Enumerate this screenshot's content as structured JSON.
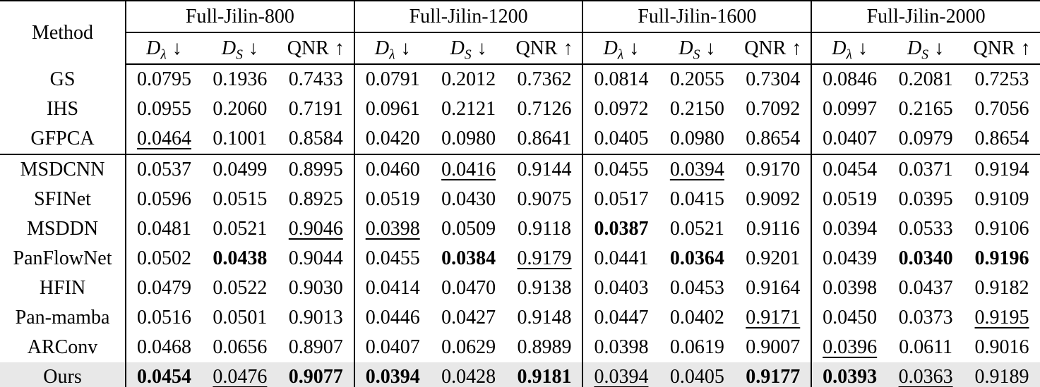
{
  "table": {
    "corner_label": "Method",
    "highlight_color": "#e8e8e8",
    "groups": [
      {
        "label": "Full-Jilin-800"
      },
      {
        "label": "Full-Jilin-1200"
      },
      {
        "label": "Full-Jilin-1600"
      },
      {
        "label": "Full-Jilin-2000"
      }
    ],
    "metric_labels": [
      {
        "base": "D",
        "sub": "λ",
        "arrow": "↓"
      },
      {
        "base": "D",
        "sub": "S",
        "arrow": "↓"
      },
      {
        "base": "QNR",
        "sub": "",
        "arrow": "↑"
      }
    ],
    "rows": [
      {
        "method": "GS",
        "section_start": false,
        "highlight": false,
        "values": [
          {
            "v": "0.0795",
            "style": "plain"
          },
          {
            "v": "0.1936",
            "style": "plain"
          },
          {
            "v": "0.7433",
            "style": "plain"
          },
          {
            "v": "0.0791",
            "style": "plain"
          },
          {
            "v": "0.2012",
            "style": "plain"
          },
          {
            "v": "0.7362",
            "style": "plain"
          },
          {
            "v": "0.0814",
            "style": "plain"
          },
          {
            "v": "0.2055",
            "style": "plain"
          },
          {
            "v": "0.7304",
            "style": "plain"
          },
          {
            "v": "0.0846",
            "style": "plain"
          },
          {
            "v": "0.2081",
            "style": "plain"
          },
          {
            "v": "0.7253",
            "style": "plain"
          }
        ]
      },
      {
        "method": "IHS",
        "section_start": false,
        "highlight": false,
        "values": [
          {
            "v": "0.0955",
            "style": "plain"
          },
          {
            "v": "0.2060",
            "style": "plain"
          },
          {
            "v": "0.7191",
            "style": "plain"
          },
          {
            "v": "0.0961",
            "style": "plain"
          },
          {
            "v": "0.2121",
            "style": "plain"
          },
          {
            "v": "0.7126",
            "style": "plain"
          },
          {
            "v": "0.0972",
            "style": "plain"
          },
          {
            "v": "0.2150",
            "style": "plain"
          },
          {
            "v": "0.7092",
            "style": "plain"
          },
          {
            "v": "0.0997",
            "style": "plain"
          },
          {
            "v": "0.2165",
            "style": "plain"
          },
          {
            "v": "0.7056",
            "style": "plain"
          }
        ]
      },
      {
        "method": "GFPCA",
        "section_start": false,
        "highlight": false,
        "values": [
          {
            "v": "0.0464",
            "style": "underline"
          },
          {
            "v": "0.1001",
            "style": "plain"
          },
          {
            "v": "0.8584",
            "style": "plain"
          },
          {
            "v": "0.0420",
            "style": "plain"
          },
          {
            "v": "0.0980",
            "style": "plain"
          },
          {
            "v": "0.8641",
            "style": "plain"
          },
          {
            "v": "0.0405",
            "style": "plain"
          },
          {
            "v": "0.0980",
            "style": "plain"
          },
          {
            "v": "0.8654",
            "style": "plain"
          },
          {
            "v": "0.0407",
            "style": "plain"
          },
          {
            "v": "0.0979",
            "style": "plain"
          },
          {
            "v": "0.8654",
            "style": "plain"
          }
        ]
      },
      {
        "method": "MSDCNN",
        "section_start": true,
        "highlight": false,
        "values": [
          {
            "v": "0.0537",
            "style": "plain"
          },
          {
            "v": "0.0499",
            "style": "plain"
          },
          {
            "v": "0.8995",
            "style": "plain"
          },
          {
            "v": "0.0460",
            "style": "plain"
          },
          {
            "v": "0.0416",
            "style": "underline"
          },
          {
            "v": "0.9144",
            "style": "plain"
          },
          {
            "v": "0.0455",
            "style": "plain"
          },
          {
            "v": "0.0394",
            "style": "underline"
          },
          {
            "v": "0.9170",
            "style": "plain"
          },
          {
            "v": "0.0454",
            "style": "plain"
          },
          {
            "v": "0.0371",
            "style": "plain"
          },
          {
            "v": "0.9194",
            "style": "plain"
          }
        ]
      },
      {
        "method": "SFINet",
        "section_start": false,
        "highlight": false,
        "values": [
          {
            "v": "0.0596",
            "style": "plain"
          },
          {
            "v": "0.0515",
            "style": "plain"
          },
          {
            "v": "0.8925",
            "style": "plain"
          },
          {
            "v": "0.0519",
            "style": "plain"
          },
          {
            "v": "0.0430",
            "style": "plain"
          },
          {
            "v": "0.9075",
            "style": "plain"
          },
          {
            "v": "0.0517",
            "style": "plain"
          },
          {
            "v": "0.0415",
            "style": "plain"
          },
          {
            "v": "0.9092",
            "style": "plain"
          },
          {
            "v": "0.0519",
            "style": "plain"
          },
          {
            "v": "0.0395",
            "style": "plain"
          },
          {
            "v": "0.9109",
            "style": "plain"
          }
        ]
      },
      {
        "method": "MSDDN",
        "section_start": false,
        "highlight": false,
        "values": [
          {
            "v": "0.0481",
            "style": "plain"
          },
          {
            "v": "0.0521",
            "style": "plain"
          },
          {
            "v": "0.9046",
            "style": "underline"
          },
          {
            "v": "0.0398",
            "style": "underline"
          },
          {
            "v": "0.0509",
            "style": "plain"
          },
          {
            "v": "0.9118",
            "style": "plain"
          },
          {
            "v": "0.0387",
            "style": "bold"
          },
          {
            "v": "0.0521",
            "style": "plain"
          },
          {
            "v": "0.9116",
            "style": "plain"
          },
          {
            "v": "0.0394",
            "style": "plain"
          },
          {
            "v": "0.0533",
            "style": "plain"
          },
          {
            "v": "0.9106",
            "style": "plain"
          }
        ]
      },
      {
        "method": "PanFlowNet",
        "section_start": false,
        "highlight": false,
        "values": [
          {
            "v": "0.0502",
            "style": "plain"
          },
          {
            "v": "0.0438",
            "style": "bold"
          },
          {
            "v": "0.9044",
            "style": "plain"
          },
          {
            "v": "0.0455",
            "style": "plain"
          },
          {
            "v": "0.0384",
            "style": "bold"
          },
          {
            "v": "0.9179",
            "style": "underline"
          },
          {
            "v": "0.0441",
            "style": "plain"
          },
          {
            "v": "0.0364",
            "style": "bold"
          },
          {
            "v": "0.9201",
            "style": "plain"
          },
          {
            "v": "0.0439",
            "style": "plain"
          },
          {
            "v": "0.0340",
            "style": "bold"
          },
          {
            "v": "0.9196",
            "style": "bold"
          }
        ]
      },
      {
        "method": "HFIN",
        "section_start": false,
        "highlight": false,
        "values": [
          {
            "v": "0.0479",
            "style": "plain"
          },
          {
            "v": "0.0522",
            "style": "plain"
          },
          {
            "v": "0.9030",
            "style": "plain"
          },
          {
            "v": "0.0414",
            "style": "plain"
          },
          {
            "v": "0.0470",
            "style": "plain"
          },
          {
            "v": "0.9138",
            "style": "plain"
          },
          {
            "v": "0.0403",
            "style": "plain"
          },
          {
            "v": "0.0453",
            "style": "plain"
          },
          {
            "v": "0.9164",
            "style": "plain"
          },
          {
            "v": "0.0398",
            "style": "plain"
          },
          {
            "v": "0.0437",
            "style": "plain"
          },
          {
            "v": "0.9182",
            "style": "plain"
          }
        ]
      },
      {
        "method": "Pan-mamba",
        "section_start": false,
        "highlight": false,
        "values": [
          {
            "v": "0.0516",
            "style": "plain"
          },
          {
            "v": "0.0501",
            "style": "plain"
          },
          {
            "v": "0.9013",
            "style": "plain"
          },
          {
            "v": "0.0446",
            "style": "plain"
          },
          {
            "v": "0.0427",
            "style": "plain"
          },
          {
            "v": "0.9148",
            "style": "plain"
          },
          {
            "v": "0.0447",
            "style": "plain"
          },
          {
            "v": "0.0402",
            "style": "plain"
          },
          {
            "v": "0.9171",
            "style": "underline"
          },
          {
            "v": "0.0450",
            "style": "plain"
          },
          {
            "v": "0.0373",
            "style": "plain"
          },
          {
            "v": "0.9195",
            "style": "underline"
          }
        ]
      },
      {
        "method": "ARConv",
        "section_start": false,
        "highlight": false,
        "values": [
          {
            "v": "0.0468",
            "style": "plain"
          },
          {
            "v": "0.0656",
            "style": "plain"
          },
          {
            "v": "0.8907",
            "style": "plain"
          },
          {
            "v": "0.0407",
            "style": "plain"
          },
          {
            "v": "0.0629",
            "style": "plain"
          },
          {
            "v": "0.8989",
            "style": "plain"
          },
          {
            "v": "0.0398",
            "style": "plain"
          },
          {
            "v": "0.0619",
            "style": "plain"
          },
          {
            "v": "0.9007",
            "style": "plain"
          },
          {
            "v": "0.0396",
            "style": "underline"
          },
          {
            "v": "0.0611",
            "style": "plain"
          },
          {
            "v": "0.9016",
            "style": "plain"
          }
        ]
      },
      {
        "method": "Ours",
        "section_start": false,
        "highlight": true,
        "values": [
          {
            "v": "0.0454",
            "style": "bold"
          },
          {
            "v": "0.0476",
            "style": "underline"
          },
          {
            "v": "0.9077",
            "style": "bold"
          },
          {
            "v": "0.0394",
            "style": "bold"
          },
          {
            "v": "0.0428",
            "style": "plain"
          },
          {
            "v": "0.9181",
            "style": "bold"
          },
          {
            "v": "0.0394",
            "style": "underline"
          },
          {
            "v": "0.0405",
            "style": "plain"
          },
          {
            "v": "0.9177",
            "style": "bold"
          },
          {
            "v": "0.0393",
            "style": "bold"
          },
          {
            "v": "0.0363",
            "style": "underline"
          },
          {
            "v": "0.9189",
            "style": "plain"
          }
        ]
      }
    ]
  }
}
